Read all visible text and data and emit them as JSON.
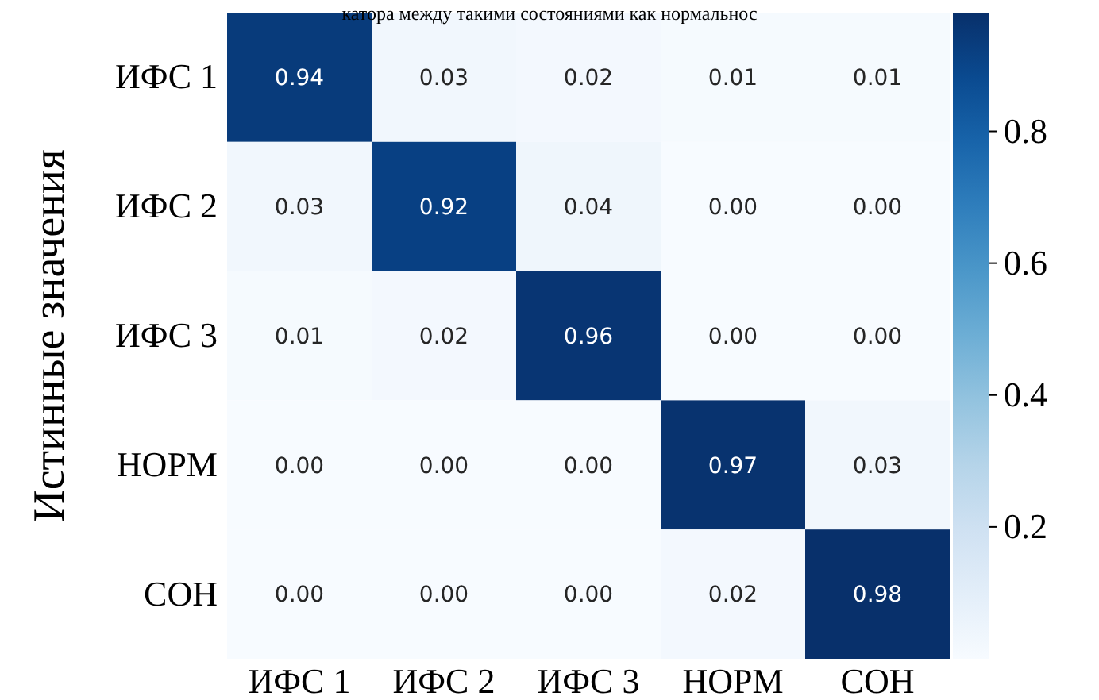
{
  "chart_data": {
    "type": "heatmap",
    "annotations": [
      "катора между такими состояниями как нормальнос"
    ],
    "ylabel": "Истинные значения",
    "categories": [
      "ИФС 1",
      "ИФС 2",
      "ИФС 3",
      "НОРМ",
      "СОН"
    ],
    "y_categories": [
      "ИФС 1",
      "ИФС 2",
      "ИФС 3",
      "НОРМ",
      "СОН"
    ],
    "cells": [
      [
        0.94,
        0.03,
        0.02,
        0.01,
        0.01
      ],
      [
        0.03,
        0.92,
        0.04,
        0.0,
        0.0
      ],
      [
        0.01,
        0.02,
        0.96,
        0.0,
        0.0
      ],
      [
        0.0,
        0.0,
        0.0,
        0.97,
        0.03
      ],
      [
        0.0,
        0.0,
        0.0,
        0.02,
        0.98
      ]
    ],
    "cell_labels": [
      [
        "0.94",
        "0.03",
        "0.02",
        "0.01",
        "0.01"
      ],
      [
        "0.03",
        "0.92",
        "0.04",
        "0.00",
        "0.00"
      ],
      [
        "0.01",
        "0.02",
        "0.96",
        "0.00",
        "0.00"
      ],
      [
        "0.00",
        "0.00",
        "0.00",
        "0.97",
        "0.03"
      ],
      [
        "0.00",
        "0.00",
        "0.00",
        "0.02",
        "0.98"
      ]
    ],
    "clim": [
      0.0,
      0.98
    ],
    "cticks": [
      0.2,
      0.4,
      0.6,
      0.8
    ]
  }
}
